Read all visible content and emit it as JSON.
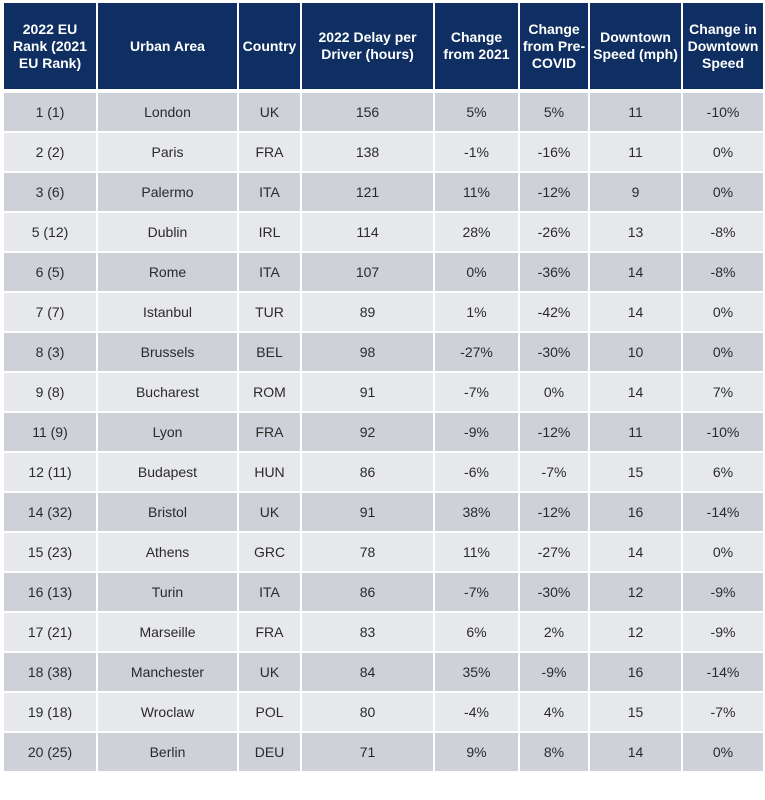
{
  "table": {
    "columns": [
      "2022 EU Rank (2021 EU Rank)",
      "Urban Area",
      "Country",
      "2022 Delay per Driver (hours)",
      "Change from 2021",
      "Change from Pre-COVID",
      "Downtown Speed (mph)",
      "Change in Downtown Speed"
    ],
    "rows": [
      [
        "1 (1)",
        "London",
        "UK",
        "156",
        "5%",
        "5%",
        "11",
        "-10%"
      ],
      [
        "2 (2)",
        "Paris",
        "FRA",
        "138",
        "-1%",
        "-16%",
        "11",
        "0%"
      ],
      [
        "3 (6)",
        "Palermo",
        "ITA",
        "121",
        "11%",
        "-12%",
        "9",
        "0%"
      ],
      [
        "5 (12)",
        "Dublin",
        "IRL",
        "114",
        "28%",
        "-26%",
        "13",
        "-8%"
      ],
      [
        "6 (5)",
        "Rome",
        "ITA",
        "107",
        "0%",
        "-36%",
        "14",
        "-8%"
      ],
      [
        "7 (7)",
        "Istanbul",
        "TUR",
        "89",
        "1%",
        "-42%",
        "14",
        "0%"
      ],
      [
        "8 (3)",
        "Brussels",
        "BEL",
        "98",
        "-27%",
        "-30%",
        "10",
        "0%"
      ],
      [
        "9 (8)",
        "Bucharest",
        "ROM",
        "91",
        "-7%",
        "0%",
        "14",
        "7%"
      ],
      [
        "11 (9)",
        "Lyon",
        "FRA",
        "92",
        "-9%",
        "-12%",
        "11",
        "-10%"
      ],
      [
        "12 (11)",
        "Budapest",
        "HUN",
        "86",
        "-6%",
        "-7%",
        "15",
        "6%"
      ],
      [
        "14 (32)",
        "Bristol",
        "UK",
        "91",
        "38%",
        "-12%",
        "16",
        "-14%"
      ],
      [
        "15 (23)",
        "Athens",
        "GRC",
        "78",
        "11%",
        "-27%",
        "14",
        "0%"
      ],
      [
        "16 (13)",
        "Turin",
        "ITA",
        "86",
        "-7%",
        "-30%",
        "12",
        "-9%"
      ],
      [
        "17 (21)",
        "Marseille",
        "FRA",
        "83",
        "6%",
        "2%",
        "12",
        "-9%"
      ],
      [
        "18 (38)",
        "Manchester",
        "UK",
        "84",
        "35%",
        "-9%",
        "16",
        "-14%"
      ],
      [
        "19 (18)",
        "Wroclaw",
        "POL",
        "80",
        "-4%",
        "4%",
        "15",
        "-7%"
      ],
      [
        "20 (25)",
        "Berlin",
        "DEU",
        "71",
        "9%",
        "8%",
        "14",
        "0%"
      ]
    ]
  },
  "colors": {
    "header_bg": "#0f2f62",
    "header_text": "#ffffff",
    "row_dark": "#ced1d7",
    "row_light": "#e7e8eb",
    "grid": "#ffffff"
  }
}
